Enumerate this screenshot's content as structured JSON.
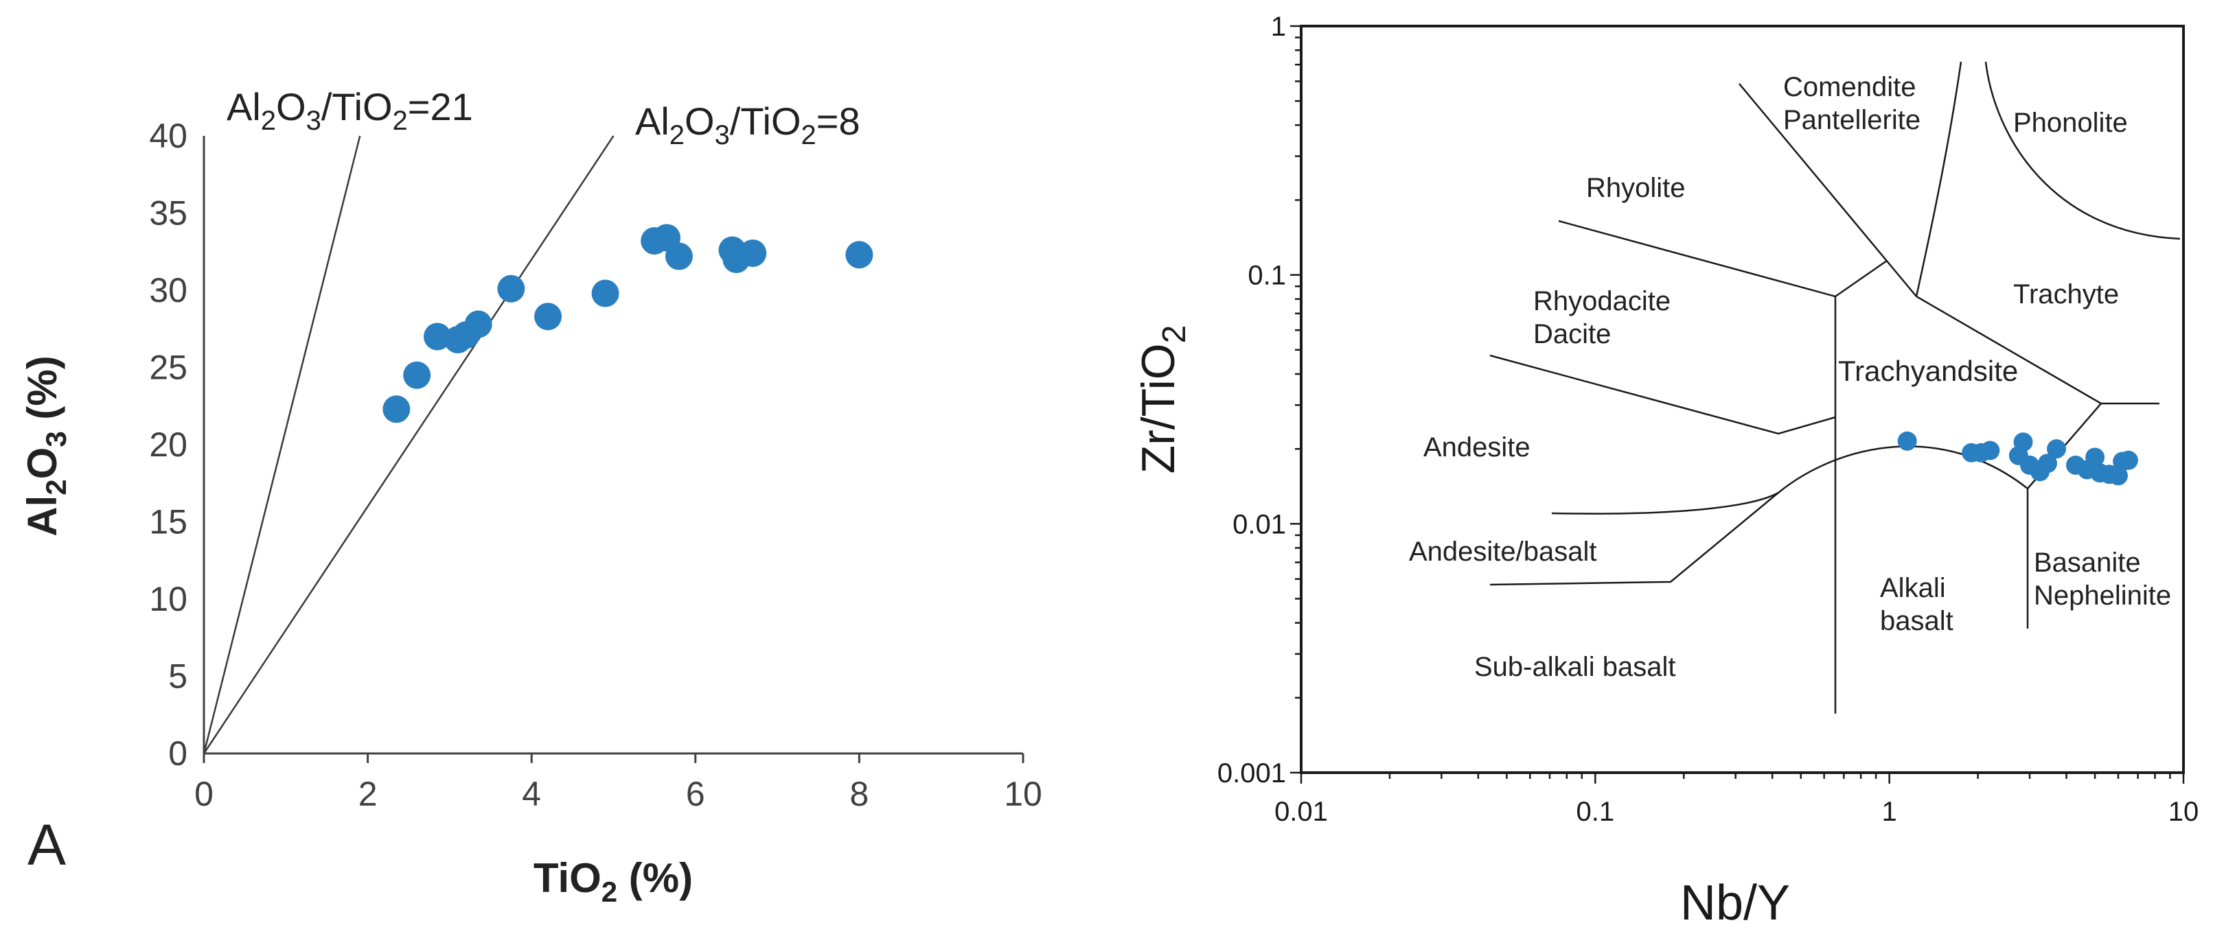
{
  "chart_data": [
    {
      "type": "scatter",
      "panel_label": "A",
      "xlabel": "TiO₂ (%)",
      "ylabel": "Al₂O₃ (%)",
      "xlim": [
        0,
        10
      ],
      "ylim": [
        0,
        40
      ],
      "xticks": [
        0,
        2,
        4,
        6,
        8,
        10
      ],
      "yticks": [
        0,
        5,
        10,
        15,
        20,
        25,
        30,
        35,
        40
      ],
      "grid": false,
      "color": "#2a7fc1",
      "reference_lines": [
        {
          "label": "Al₂O₃/TiO₂=21",
          "slope": 21
        },
        {
          "label": "Al₂O₃/TiO₂=8",
          "slope": 8
        }
      ],
      "points": [
        {
          "x": 2.35,
          "y": 22.3
        },
        {
          "x": 2.6,
          "y": 24.5
        },
        {
          "x": 2.85,
          "y": 27.0
        },
        {
          "x": 3.1,
          "y": 26.8
        },
        {
          "x": 3.2,
          "y": 27.1
        },
        {
          "x": 3.35,
          "y": 27.8
        },
        {
          "x": 3.75,
          "y": 30.1
        },
        {
          "x": 4.2,
          "y": 28.3
        },
        {
          "x": 4.9,
          "y": 29.8
        },
        {
          "x": 5.5,
          "y": 33.2
        },
        {
          "x": 5.65,
          "y": 33.4
        },
        {
          "x": 5.8,
          "y": 32.2
        },
        {
          "x": 6.45,
          "y": 32.6
        },
        {
          "x": 6.5,
          "y": 32.0
        },
        {
          "x": 6.7,
          "y": 32.4
        },
        {
          "x": 8.0,
          "y": 32.3
        }
      ]
    },
    {
      "type": "scatter",
      "xlabel": "Nb/Y",
      "ylabel": "Zr/TiO₂",
      "xscale": "log",
      "yscale": "log",
      "xlim": [
        0.01,
        10
      ],
      "ylim": [
        0.001,
        1
      ],
      "xtick_labels": [
        "0.01",
        "0.1",
        "1",
        "10"
      ],
      "ytick_labels": [
        "0.001",
        "0.01",
        "0.1",
        "1"
      ],
      "grid": false,
      "color": "#2a7fc1",
      "field_labels": [
        "Comendite\nPantellerite",
        "Phonolite",
        "Rhyolite",
        "Trachyte",
        "Rhyodacite\nDacite",
        "Trachyandsite",
        "Andesite",
        "Andesite/basalt",
        "Alkali\nbasalt",
        "Basanite\nNephelinite",
        "Sub-alkali basalt"
      ],
      "points": [
        {
          "x": 1.15,
          "y": 0.0215
        },
        {
          "x": 1.9,
          "y": 0.0193
        },
        {
          "x": 2.05,
          "y": 0.0193
        },
        {
          "x": 2.2,
          "y": 0.0197
        },
        {
          "x": 2.75,
          "y": 0.0188
        },
        {
          "x": 2.85,
          "y": 0.0213
        },
        {
          "x": 3.0,
          "y": 0.0172
        },
        {
          "x": 3.25,
          "y": 0.0162
        },
        {
          "x": 3.45,
          "y": 0.0175
        },
        {
          "x": 3.7,
          "y": 0.02
        },
        {
          "x": 4.3,
          "y": 0.0172
        },
        {
          "x": 4.7,
          "y": 0.0165
        },
        {
          "x": 5.0,
          "y": 0.0185
        },
        {
          "x": 5.2,
          "y": 0.016
        },
        {
          "x": 5.6,
          "y": 0.0158
        },
        {
          "x": 6.0,
          "y": 0.0156
        },
        {
          "x": 6.2,
          "y": 0.0178
        },
        {
          "x": 6.5,
          "y": 0.018
        }
      ]
    }
  ]
}
